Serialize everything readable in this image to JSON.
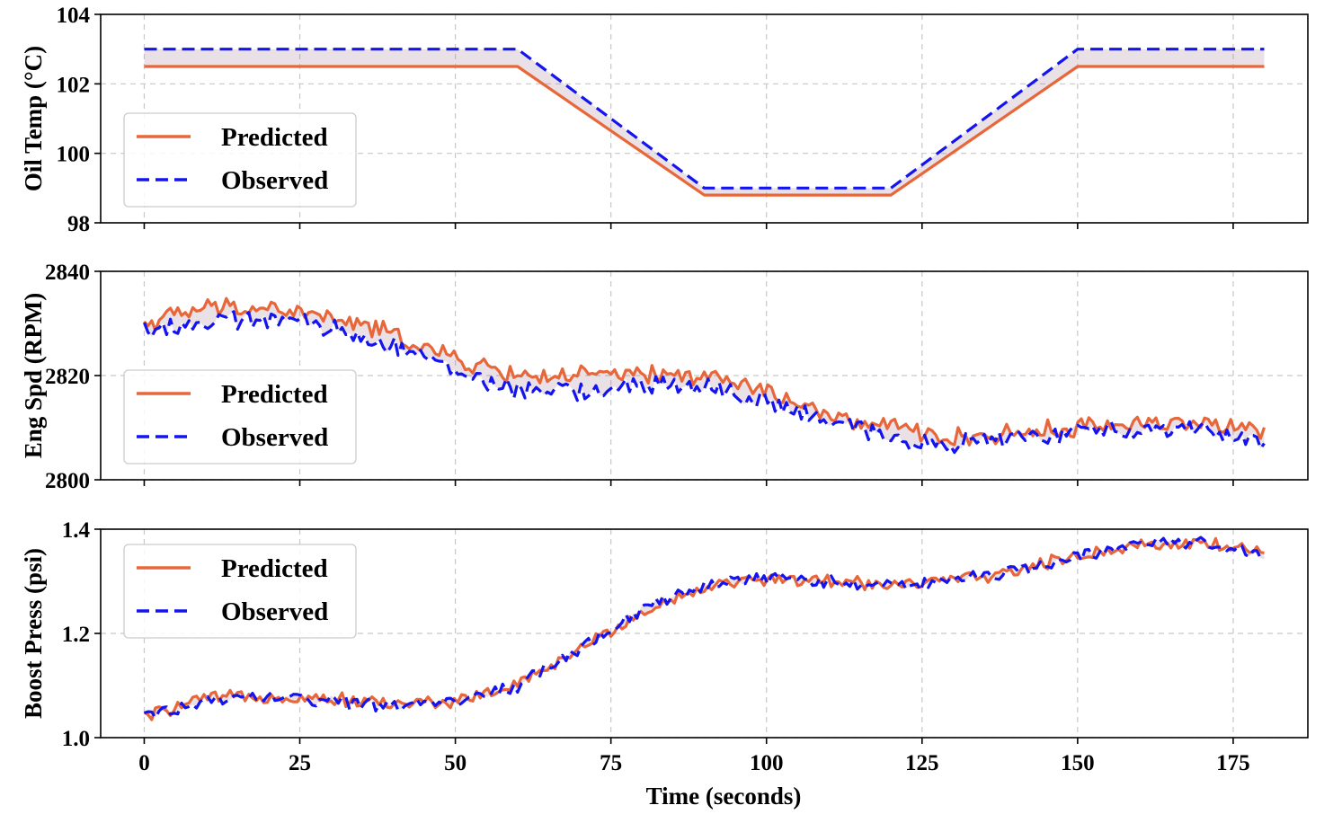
{
  "chart_data": [
    {
      "type": "line",
      "id": "oil",
      "ylabel": "Oil Temp (°C)",
      "ylim": [
        98,
        104
      ],
      "yticks": [
        98,
        100,
        102,
        104
      ],
      "ytick_labels": [
        "98",
        "100",
        "102",
        "104"
      ],
      "xlim": [
        -7,
        187
      ],
      "xticks": [
        0,
        25,
        50,
        75,
        100,
        125,
        150,
        175
      ],
      "xtick_labels": [],
      "legend": [
        "Predicted",
        "Observed"
      ],
      "legend_position": "center-left",
      "series": [
        {
          "name": "Predicted",
          "color": "#E8673A",
          "style": "solid",
          "x": [
            0,
            60,
            90,
            120,
            150,
            180
          ],
          "y": [
            102.5,
            102.5,
            98.8,
            98.8,
            102.5,
            102.5
          ]
        },
        {
          "name": "Observed",
          "color": "#1414F0",
          "style": "dashed",
          "x": [
            0,
            60,
            90,
            120,
            150,
            180
          ],
          "y": [
            103.0,
            103.0,
            99.0,
            99.0,
            103.0,
            103.0
          ]
        }
      ]
    },
    {
      "type": "line",
      "id": "eng",
      "ylabel": "Eng Spd (RPM)",
      "ylim": [
        2800,
        2840
      ],
      "yticks": [
        2800,
        2820,
        2840
      ],
      "ytick_labels": [
        "2800",
        "2820",
        "2840"
      ],
      "xlim": [
        -7,
        187
      ],
      "xticks": [
        0,
        25,
        50,
        75,
        100,
        125,
        150,
        175
      ],
      "xtick_labels": [],
      "legend": [
        "Predicted",
        "Observed"
      ],
      "legend_position": "center-left",
      "series": [
        {
          "name": "Predicted",
          "color": "#E8673A",
          "style": "solid",
          "x": [
            0,
            10,
            20,
            30,
            40,
            50,
            60,
            70,
            80,
            90,
            100,
            110,
            120,
            130,
            140,
            150,
            160,
            170,
            180
          ],
          "y": [
            2830,
            2833,
            2833,
            2831,
            2828,
            2823,
            2820,
            2820,
            2820,
            2820,
            2817,
            2812,
            2810,
            2808,
            2809,
            2810,
            2811,
            2811,
            2809
          ]
        },
        {
          "name": "Observed",
          "color": "#1414F0",
          "style": "dashed",
          "x": [
            0,
            10,
            20,
            30,
            40,
            50,
            60,
            70,
            80,
            90,
            100,
            110,
            120,
            130,
            140,
            150,
            160,
            170,
            180
          ],
          "y": [
            2829,
            2830,
            2831,
            2829,
            2826,
            2821,
            2817,
            2817,
            2818,
            2818,
            2815,
            2811,
            2808,
            2807,
            2808,
            2809,
            2810,
            2810,
            2807
          ]
        }
      ]
    },
    {
      "type": "line",
      "id": "boost",
      "ylabel": "Boost Press (psi)",
      "xlabel": "Time (seconds)",
      "ylim": [
        1.0,
        1.4
      ],
      "yticks": [
        1.0,
        1.2,
        1.4
      ],
      "ytick_labels": [
        "1.0",
        "1.2",
        "1.4"
      ],
      "xlim": [
        -7,
        187
      ],
      "xticks": [
        0,
        25,
        50,
        75,
        100,
        125,
        150,
        175
      ],
      "xtick_labels": [
        "0",
        "25",
        "50",
        "75",
        "100",
        "125",
        "150",
        "175"
      ],
      "legend": [
        "Predicted",
        "Observed"
      ],
      "legend_position": "upper-left",
      "series": [
        {
          "name": "Predicted",
          "color": "#E8673A",
          "style": "solid",
          "x": [
            0,
            10,
            20,
            30,
            40,
            50,
            60,
            70,
            80,
            90,
            100,
            110,
            120,
            130,
            140,
            150,
            160,
            170,
            180
          ],
          "y": [
            1.04,
            1.075,
            1.08,
            1.075,
            1.065,
            1.07,
            1.1,
            1.17,
            1.24,
            1.29,
            1.305,
            1.3,
            1.295,
            1.3,
            1.32,
            1.35,
            1.37,
            1.375,
            1.355
          ]
        },
        {
          "name": "Observed",
          "color": "#1414F0",
          "style": "dashed",
          "x": [
            0,
            10,
            20,
            30,
            40,
            50,
            60,
            70,
            80,
            90,
            100,
            110,
            120,
            130,
            140,
            150,
            160,
            170,
            180
          ],
          "y": [
            1.04,
            1.07,
            1.08,
            1.07,
            1.06,
            1.07,
            1.1,
            1.17,
            1.245,
            1.295,
            1.305,
            1.3,
            1.29,
            1.3,
            1.32,
            1.35,
            1.37,
            1.375,
            1.35
          ]
        }
      ]
    }
  ]
}
